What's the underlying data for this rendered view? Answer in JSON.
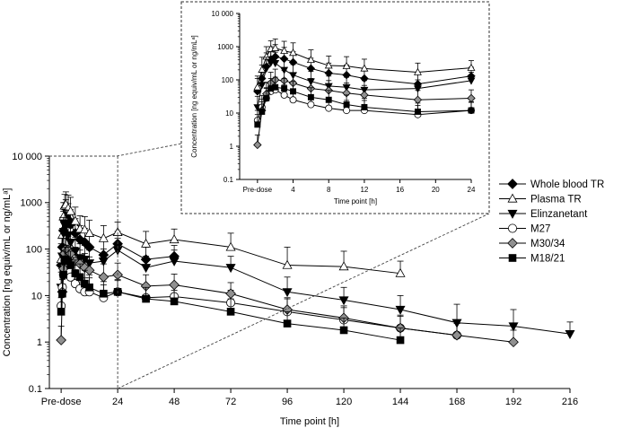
{
  "chart_data": {
    "type": "line",
    "xlabel": "Time point [h]",
    "ylabel": "Concentration [ng equiv/mL or ng/mLᵃ]",
    "ylim": [
      0.1,
      10000
    ],
    "yscale": "log",
    "xlim": [
      0,
      216
    ],
    "x_ticks": [
      0,
      24,
      48,
      72,
      96,
      120,
      144,
      168,
      192,
      216
    ],
    "x_tick_labels": [
      "Pre-dose",
      "24",
      "48",
      "72",
      "96",
      "120",
      "144",
      "168",
      "192",
      "216"
    ],
    "y_ticks": [
      0.1,
      1,
      10,
      100,
      1000,
      10000
    ],
    "y_tick_labels": [
      "0.1",
      "1",
      "10",
      "100",
      "1000",
      "10 000"
    ],
    "legend_position": "right",
    "series": [
      {
        "name": "Whole blood TR",
        "marker": "diamond",
        "fill": "#000000",
        "x": [
          0,
          0.5,
          1,
          1.5,
          2,
          3,
          4,
          6,
          8,
          10,
          12,
          18,
          24,
          36,
          48
        ],
        "y": [
          45,
          110,
          250,
          420,
          500,
          430,
          340,
          220,
          160,
          140,
          110,
          75,
          130,
          60,
          70
        ],
        "err_hi": [
          110,
          280,
          650,
          1000,
          1150,
          950,
          700,
          450,
          320,
          280,
          220,
          150,
          240,
          110,
          120
        ]
      },
      {
        "name": "Plasma TR",
        "marker": "triangle-up",
        "fill": "#ffffff",
        "x": [
          0,
          0.5,
          1,
          1.5,
          2,
          3,
          4,
          6,
          8,
          10,
          12,
          18,
          24,
          36,
          48,
          72,
          96,
          120,
          144
        ],
        "y": [
          60,
          200,
          500,
          850,
          900,
          750,
          650,
          400,
          270,
          260,
          220,
          170,
          230,
          130,
          160,
          110,
          45,
          42,
          30
        ],
        "err_hi": [
          130,
          480,
          1000,
          1500,
          1700,
          1450,
          1300,
          800,
          520,
          500,
          420,
          320,
          380,
          240,
          270,
          220,
          110,
          90,
          55
        ]
      },
      {
        "name": "Elinzanetant",
        "marker": "triangle-down",
        "fill": "#000000",
        "x": [
          0,
          0.5,
          1,
          1.5,
          2,
          3,
          4,
          6,
          8,
          10,
          12,
          18,
          24,
          36,
          48,
          72,
          96,
          120,
          144,
          168,
          192,
          216
        ],
        "y": [
          15,
          70,
          220,
          330,
          320,
          200,
          140,
          90,
          65,
          60,
          50,
          55,
          95,
          40,
          55,
          40,
          12,
          8,
          5,
          2.6,
          2.2,
          1.5
        ],
        "err_hi": [
          32,
          170,
          480,
          700,
          680,
          420,
          290,
          180,
          130,
          120,
          95,
          100,
          170,
          70,
          95,
          70,
          25,
          15,
          10,
          6.5,
          5,
          2.7
        ]
      },
      {
        "name": "M27",
        "marker": "circle",
        "fill": "#ffffff",
        "x": [
          0,
          0.5,
          1,
          1.5,
          2,
          3,
          4,
          6,
          8,
          10,
          12,
          18,
          24,
          36,
          48,
          72,
          96,
          120,
          144,
          168
        ],
        "y": [
          6,
          15,
          28,
          45,
          50,
          35,
          25,
          18,
          14,
          12,
          12,
          9,
          12,
          9,
          9.5,
          7,
          4.5,
          3,
          2,
          1.4
        ],
        "err_hi": [
          12,
          34,
          58,
          90,
          100,
          70,
          52,
          36,
          28,
          24,
          24,
          17,
          22,
          16,
          17,
          13,
          8.5,
          5.5,
          3.8,
          2.7
        ]
      },
      {
        "name": "M30/34",
        "marker": "diamond",
        "fill": "#909090",
        "x": [
          0,
          0.5,
          1,
          1.5,
          2,
          3,
          4,
          6,
          8,
          10,
          12,
          18,
          24,
          36,
          48,
          72,
          96,
          120,
          144,
          168,
          192
        ],
        "y": [
          1.1,
          12,
          38,
          80,
          100,
          95,
          80,
          55,
          48,
          40,
          35,
          25,
          28,
          16,
          17,
          11,
          5,
          3.3,
          2,
          1.4,
          1
        ],
        "err_hi": [
          2.2,
          26,
          85,
          170,
          210,
          190,
          160,
          110,
          95,
          80,
          68,
          48,
          50,
          28,
          29,
          19,
          9,
          6,
          3.6,
          2.5,
          1.8
        ]
      },
      {
        "name": "M18/21",
        "marker": "square",
        "fill": "#000000",
        "x": [
          0,
          0.5,
          1,
          1.5,
          2,
          3,
          4,
          6,
          8,
          10,
          12,
          18,
          24,
          36,
          48,
          72,
          96,
          120,
          144
        ],
        "y": [
          4.5,
          11,
          28,
          55,
          60,
          55,
          45,
          30,
          25,
          18,
          15,
          11,
          12,
          8.5,
          7.5,
          4.5,
          2.5,
          1.8,
          1.1
        ],
        "err_hi": [
          9,
          22,
          55,
          110,
          120,
          110,
          90,
          58,
          48,
          35,
          28,
          20,
          21,
          15,
          13,
          8.5,
          4.5,
          3.3,
          2
        ]
      }
    ],
    "inset": {
      "xlabel": "Time point [h]",
      "ylabel": "Concentration [ng equiv/mL or ng/mLᵃ]",
      "xlim": [
        0,
        24
      ],
      "ylim": [
        0.1,
        10000
      ],
      "x_ticks": [
        0,
        4,
        8,
        12,
        16,
        20,
        24
      ],
      "x_tick_labels": [
        "Pre-dose",
        "4",
        "8",
        "12",
        "16",
        "20",
        "24"
      ],
      "y_ticks": [
        0.1,
        1,
        10,
        100,
        1000,
        10000
      ],
      "y_tick_labels": [
        "0.1",
        "1",
        "10",
        "100",
        "1000",
        "10 000"
      ]
    }
  }
}
